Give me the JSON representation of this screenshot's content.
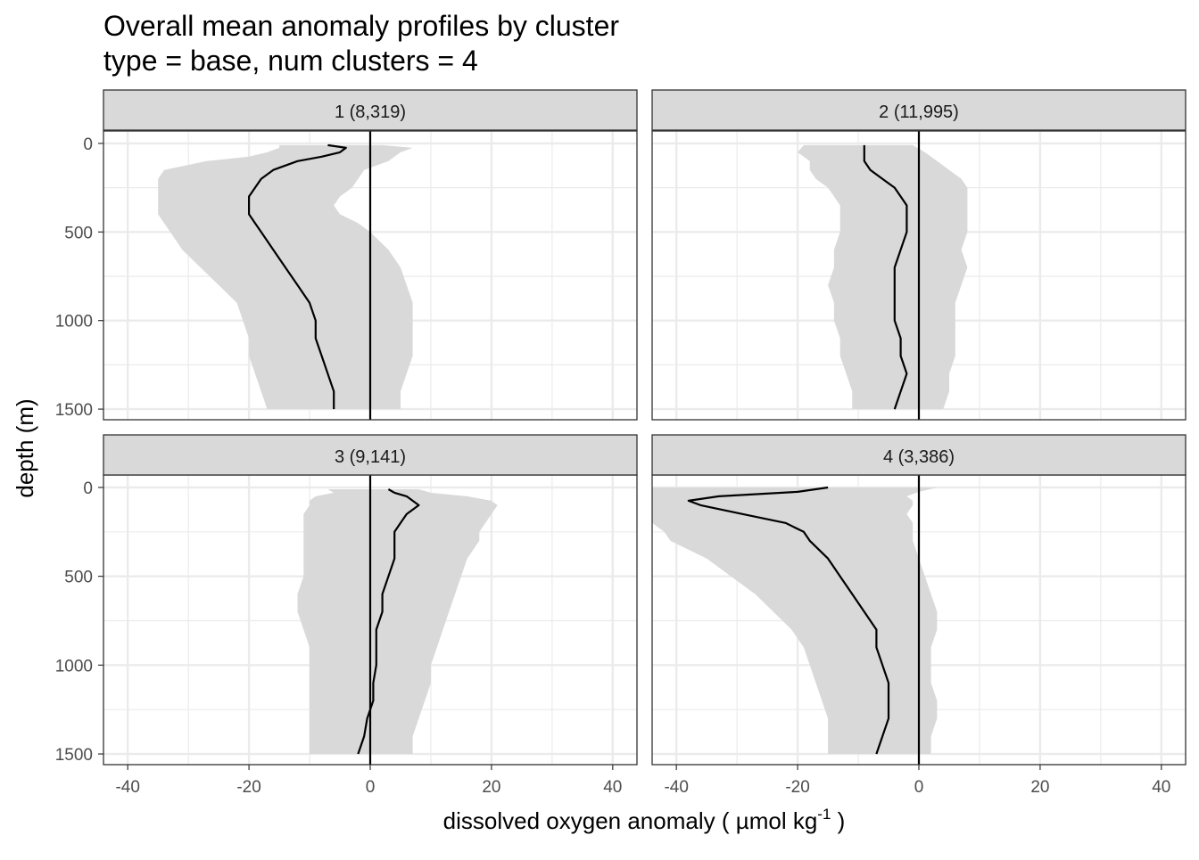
{
  "title": "Overall mean anomaly profiles by cluster",
  "subtitle": "type = base, num clusters = 4",
  "chart_data": {
    "type": "line",
    "xlabel": "dissolved oxygen anomaly ( µmol kg",
    "xlabel_superscript": "-1",
    "xlabel_suffix": " )",
    "ylabel": "depth (m)",
    "xlim": [
      -44,
      44
    ],
    "ylim": [
      1560,
      -70
    ],
    "x_ticks": [
      -40,
      -20,
      0,
      20,
      40
    ],
    "x_tick_labels": [
      "-40",
      "-20",
      "0",
      "20",
      "40"
    ],
    "y_ticks": [
      0,
      500,
      1000,
      1500
    ],
    "y_tick_labels": [
      "0",
      "500",
      "1000",
      "1500"
    ],
    "reference_line_x": 0,
    "grid": true,
    "colors": {
      "mean_line": "#000000",
      "band_fill": "#d9d9d9",
      "strip_fill": "#d9d9d9",
      "grid": "#ebebeb"
    },
    "panels": [
      {
        "label": "1 (8,319)",
        "depth": [
          10,
          25,
          50,
          75,
          100,
          150,
          200,
          250,
          300,
          350,
          400,
          450,
          500,
          600,
          700,
          800,
          900,
          1000,
          1100,
          1200,
          1300,
          1400,
          1500
        ],
        "mean": [
          -7,
          -4,
          -5,
          -8,
          -12,
          -16,
          -18,
          -19,
          -20,
          -20,
          -20,
          -19,
          -18,
          -16,
          -14,
          -12,
          -10,
          -9,
          -9,
          -8,
          -7,
          -6,
          -6
        ],
        "lower": [
          -15,
          -15,
          -17,
          -20,
          -27,
          -34,
          -35,
          -35,
          -35,
          -35,
          -35,
          -34,
          -33,
          -31,
          -28,
          -25,
          -22,
          -21,
          -20,
          -20,
          -19,
          -18,
          -17
        ],
        "upper": [
          2,
          7,
          5,
          4,
          3,
          -1,
          -2,
          -3,
          -5,
          -6,
          -5,
          -2,
          0,
          3,
          5,
          6,
          7,
          7,
          7,
          7,
          6,
          5,
          5
        ]
      },
      {
        "label": "2 (11,995)",
        "depth": [
          10,
          50,
          100,
          150,
          200,
          250,
          300,
          350,
          400,
          450,
          500,
          600,
          700,
          800,
          900,
          1000,
          1100,
          1200,
          1300,
          1400,
          1500
        ],
        "mean": [
          -9,
          -9,
          -9,
          -8,
          -6,
          -4,
          -3,
          -2,
          -2,
          -2,
          -2,
          -3,
          -4,
          -4,
          -4,
          -4,
          -3,
          -3,
          -2,
          -3,
          -4
        ],
        "lower": [
          -19,
          -20,
          -18,
          -18,
          -17,
          -15,
          -14,
          -13,
          -13,
          -13,
          -13,
          -14,
          -14,
          -15,
          -14,
          -14,
          -13,
          -13,
          -12,
          -11,
          -11
        ],
        "upper": [
          -1,
          1,
          3,
          5,
          7,
          8,
          8,
          8,
          8,
          8,
          8,
          7,
          8,
          7,
          6,
          6,
          6,
          6,
          5,
          5,
          4
        ]
      },
      {
        "label": "3 (9,141)",
        "depth": [
          10,
          30,
          50,
          75,
          100,
          150,
          200,
          250,
          300,
          400,
          500,
          600,
          700,
          800,
          900,
          1000,
          1100,
          1200,
          1300,
          1400,
          1500
        ],
        "mean": [
          3,
          4,
          6,
          7,
          8,
          6,
          5,
          4,
          4,
          4,
          3,
          2,
          2,
          1,
          1,
          1,
          0.5,
          0.5,
          -0.5,
          -1,
          -2
        ],
        "lower": [
          -7,
          -6,
          -9,
          -10,
          -10,
          -11,
          -11,
          -11,
          -11,
          -11,
          -11,
          -12,
          -12,
          -11,
          -10,
          -10,
          -10,
          -10,
          -10,
          -10,
          -10
        ],
        "upper": [
          8,
          10,
          16,
          20,
          21,
          20,
          19,
          18,
          18,
          16,
          15,
          14,
          13,
          12,
          11,
          10,
          10,
          9,
          8,
          7,
          7
        ]
      },
      {
        "label": "4 (3,386)",
        "depth": [
          0,
          25,
          50,
          75,
          100,
          150,
          200,
          250,
          300,
          400,
          500,
          600,
          700,
          800,
          900,
          1000,
          1100,
          1200,
          1300,
          1400,
          1500
        ],
        "mean": [
          -15,
          -20,
          -33,
          -38,
          -36,
          -29,
          -22,
          -19,
          -18,
          -15,
          -13,
          -11,
          -9,
          -7,
          -7,
          -6,
          -5,
          -5,
          -5,
          -6,
          -7
        ],
        "lower": [
          -44,
          -44,
          -44,
          -44,
          -44,
          -44,
          -44,
          -42,
          -41,
          -35,
          -31,
          -27,
          -24,
          -21,
          -19,
          -18,
          -17,
          -16,
          -15,
          -15,
          -15
        ],
        "upper": [
          3,
          0,
          -2,
          -1,
          -1,
          -2,
          -1,
          -1,
          -1,
          0,
          1,
          2,
          3,
          3,
          2,
          2,
          2,
          3,
          3,
          2,
          2
        ]
      }
    ]
  }
}
